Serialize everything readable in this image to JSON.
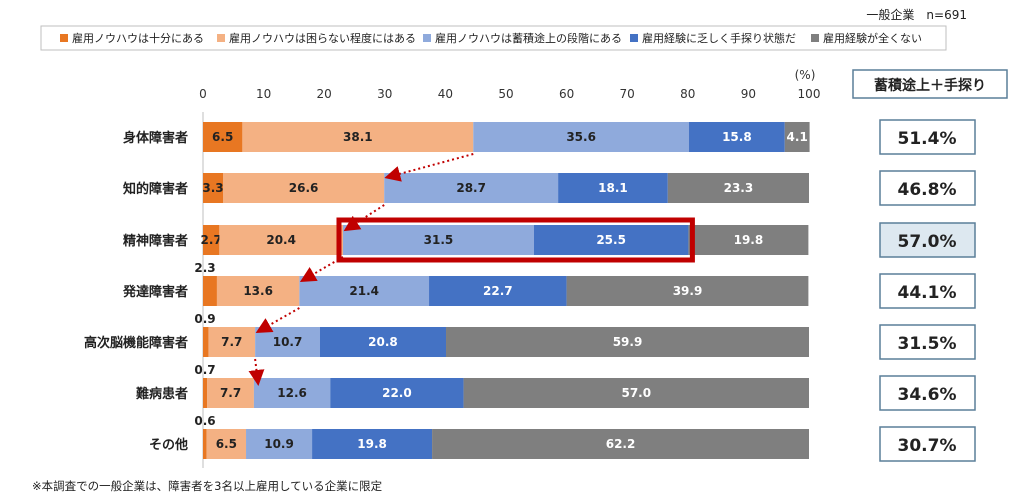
{
  "sample_label": "一般企業　n=691",
  "footnote": "※本調査での一般企業は、障害者を3名以上雇用している企業に限定",
  "summary_header": "蓄積途上＋手探り",
  "summary_values": [
    "51.4%",
    "46.8%",
    "57.0%",
    "44.1%",
    "31.5%",
    "34.6%",
    "30.7%"
  ],
  "highlight_index": 2,
  "colors": {
    "series": [
      "#e87722",
      "#f4b183",
      "#8faadc",
      "#4472c4",
      "#7f7f7f"
    ],
    "highlight_box": "#c00000",
    "arrow": "#c00000",
    "summary_border": "#5a7f99",
    "summary_highlight_fill": "#dde8f0"
  },
  "chart_data": {
    "type": "bar",
    "orientation": "horizontal-stacked",
    "axis_unit": "(%)",
    "xlim": [
      0,
      100
    ],
    "xticks": [
      0,
      10,
      20,
      30,
      40,
      50,
      60,
      70,
      80,
      90,
      100
    ],
    "categories": [
      "身体障害者",
      "知的障害者",
      "精神障害者",
      "発達障害者",
      "高次脳機能障害者",
      "難病患者",
      "その他"
    ],
    "series": [
      {
        "name": "雇用ノウハウは十分にある",
        "values": [
          6.5,
          3.3,
          2.7,
          2.3,
          0.9,
          0.7,
          0.6
        ]
      },
      {
        "name": "雇用ノウハウは困らない程度にはある",
        "values": [
          38.1,
          26.6,
          20.4,
          13.6,
          7.7,
          7.7,
          6.5
        ]
      },
      {
        "name": "雇用ノウハウは蓄積途上の段階にある",
        "values": [
          35.6,
          28.7,
          31.5,
          21.4,
          10.7,
          12.6,
          10.9
        ]
      },
      {
        "name": "雇用経験に乏しく手探り状態だ",
        "values": [
          15.8,
          18.1,
          25.5,
          22.7,
          20.8,
          22.0,
          19.8
        ]
      },
      {
        "name": "雇用経験が全くない",
        "values": [
          4.1,
          23.3,
          19.8,
          39.9,
          59.9,
          57.0,
          62.2
        ]
      }
    ]
  }
}
